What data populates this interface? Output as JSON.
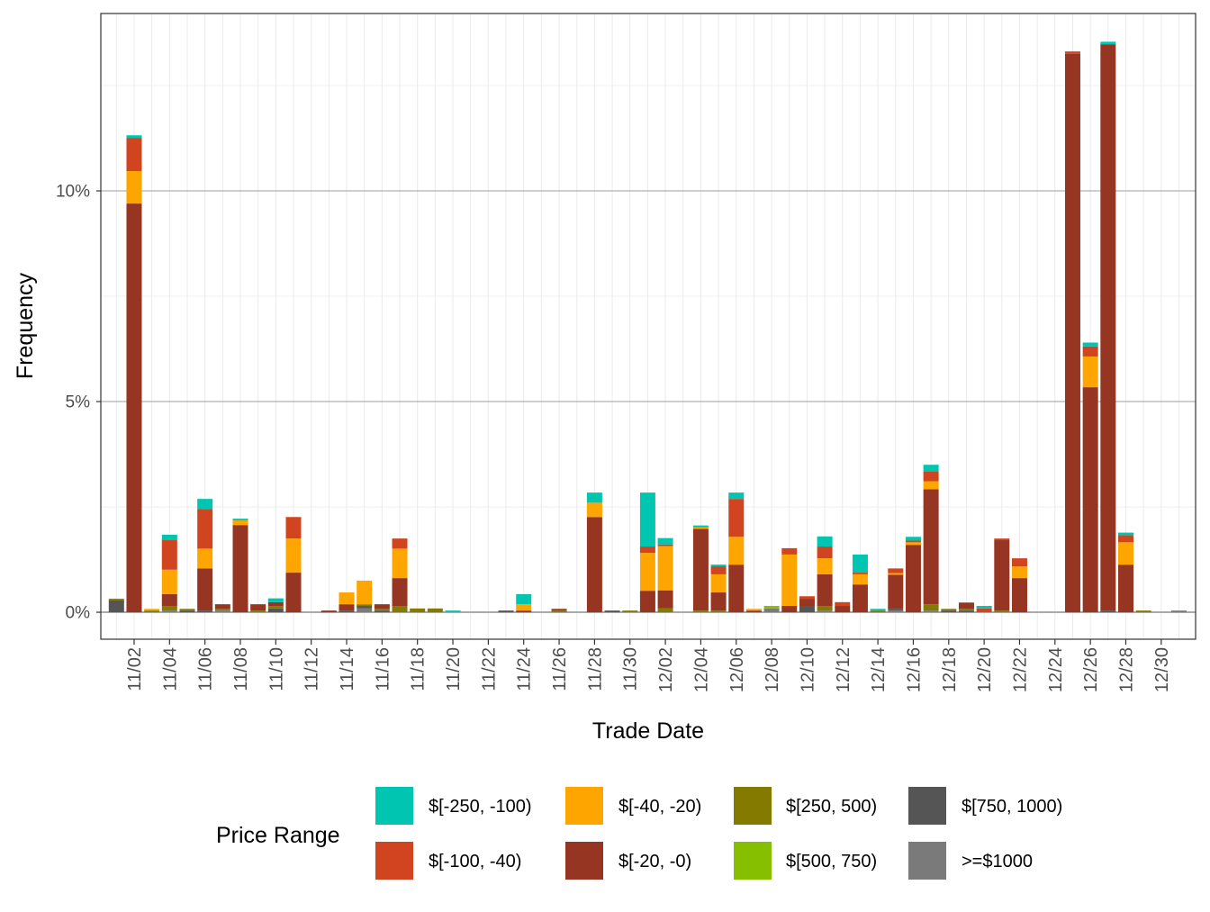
{
  "chart_data": {
    "type": "bar",
    "stacked": true,
    "xlabel": "Trade Date",
    "ylabel": "Frequency",
    "ylim": [
      -0.64,
      14.21
    ],
    "y_ticks": [
      {
        "value": 0,
        "label": "0%"
      },
      {
        "value": 5,
        "label": "5%"
      },
      {
        "value": 10,
        "label": "10%"
      }
    ],
    "grid": true,
    "legend": {
      "title": "Price Range",
      "placement": "bottom"
    },
    "categories": [
      "11/01",
      "11/02",
      "11/03",
      "11/04",
      "11/05",
      "11/06",
      "11/07",
      "11/08",
      "11/09",
      "11/10",
      "11/11",
      "11/12",
      "11/13",
      "11/14",
      "11/15",
      "11/16",
      "11/17",
      "11/18",
      "11/19",
      "11/20",
      "11/21",
      "11/22",
      "11/23",
      "11/24",
      "11/25",
      "11/26",
      "11/27",
      "11/28",
      "11/29",
      "11/30",
      "12/01",
      "12/02",
      "12/03",
      "12/04",
      "12/05",
      "12/06",
      "12/07",
      "12/08",
      "12/09",
      "12/10",
      "12/11",
      "12/12",
      "12/13",
      "12/14",
      "12/15",
      "12/16",
      "12/17",
      "12/18",
      "12/19",
      "12/20",
      "12/21",
      "12/22",
      "12/23",
      "12/24",
      "12/25",
      "12/26",
      "12/27",
      "12/28",
      "12/29",
      "12/30",
      "12/31"
    ],
    "x_tick_labels": [
      "11/02",
      "11/04",
      "11/06",
      "11/08",
      "11/10",
      "11/12",
      "11/14",
      "11/16",
      "11/18",
      "11/20",
      "11/22",
      "11/24",
      "11/26",
      "11/28",
      "11/30",
      "12/02",
      "12/04",
      "12/06",
      "12/08",
      "12/10",
      "12/12",
      "12/14",
      "12/16",
      "12/18",
      "12/20",
      "12/22",
      "12/24",
      "12/26",
      "12/28",
      "12/30"
    ],
    "series": [
      {
        "name": ">=$1000",
        "color": "#7a7a7a",
        "values": [
          0,
          0,
          0,
          0.04,
          0,
          0,
          0.04,
          0,
          0,
          0,
          0,
          0,
          0,
          0,
          0.09,
          0,
          0,
          0,
          0,
          0,
          0,
          0,
          0,
          0,
          0,
          0,
          0,
          0,
          0,
          0,
          0,
          0,
          0,
          0,
          0,
          0,
          0,
          0.09,
          0,
          0,
          0.04,
          0,
          0,
          0,
          0.04,
          0,
          0.04,
          0,
          0,
          0,
          0,
          0,
          0,
          0,
          0,
          0,
          0,
          0,
          0,
          0,
          0.04
        ]
      },
      {
        "name": "$[750, 1000)",
        "color": "#555555",
        "values": [
          0.28,
          0,
          0,
          0,
          0.04,
          0.04,
          0,
          0,
          0,
          0.09,
          0,
          0,
          0,
          0.04,
          0.06,
          0.04,
          0,
          0,
          0,
          0,
          0,
          0,
          0.04,
          0,
          0,
          0,
          0,
          0,
          0.04,
          0,
          0,
          0,
          0,
          0,
          0,
          0,
          0,
          0,
          0,
          0.15,
          0,
          0,
          0,
          0,
          0.04,
          0,
          0,
          0.04,
          0.04,
          0,
          0,
          0,
          0,
          0,
          0,
          0,
          0.04,
          0,
          0,
          0,
          0
        ]
      },
      {
        "name": "$[500, 750)",
        "color": "#86be00",
        "values": [
          0,
          0,
          0,
          0,
          0,
          0,
          0,
          0,
          0,
          0,
          0,
          0,
          0,
          0,
          0,
          0,
          0,
          0,
          0,
          0,
          0,
          0,
          0,
          0,
          0,
          0,
          0,
          0,
          0,
          0,
          0,
          0,
          0,
          0,
          0,
          0,
          0,
          0.06,
          0,
          0,
          0,
          0,
          0,
          0,
          0,
          0,
          0,
          0,
          0,
          0,
          0,
          0,
          0,
          0,
          0,
          0,
          0,
          0,
          0,
          0,
          0
        ]
      },
      {
        "name": "$[250, 500)",
        "color": "#857a00",
        "values": [
          0.04,
          0,
          0.04,
          0.11,
          0.04,
          0,
          0.04,
          0,
          0.04,
          0.06,
          0,
          0,
          0,
          0,
          0.04,
          0.04,
          0.15,
          0.09,
          0.09,
          0,
          0,
          0,
          0,
          0,
          0,
          0.04,
          0,
          0,
          0,
          0.04,
          0,
          0.09,
          0,
          0.04,
          0.04,
          0,
          0,
          0,
          0,
          0,
          0.11,
          0,
          0,
          0.04,
          0,
          0,
          0.15,
          0.04,
          0.04,
          0,
          0.04,
          0,
          0,
          0,
          0,
          0,
          0,
          0,
          0.04,
          0,
          0
        ]
      },
      {
        "name": "$[-20, -0)",
        "color": "#963522",
        "values": [
          0,
          9.7,
          0,
          0.28,
          0,
          1.0,
          0.11,
          2.07,
          0.15,
          0.09,
          0.94,
          0,
          0.04,
          0.15,
          0,
          0.11,
          0.66,
          0,
          0,
          0,
          0,
          0,
          0,
          0.04,
          0,
          0.04,
          0,
          2.26,
          0,
          0,
          0.51,
          0.43,
          0,
          1.94,
          0.43,
          1.13,
          0.04,
          0,
          0.15,
          0.17,
          0.75,
          0.15,
          0.66,
          0,
          0.81,
          1.6,
          2.73,
          0,
          0.15,
          0,
          1.67,
          0.81,
          0,
          0,
          13.25,
          5.34,
          13.44,
          1.13,
          0,
          0,
          0
        ]
      },
      {
        "name": "$[-40, -20)",
        "color": "#ffa500",
        "values": [
          0,
          0.77,
          0.04,
          0.58,
          0,
          0.47,
          0,
          0.11,
          0,
          0,
          0.81,
          0,
          0,
          0.28,
          0.56,
          0,
          0.7,
          0,
          0,
          0,
          0,
          0,
          0,
          0.15,
          0,
          0,
          0,
          0.34,
          0,
          0,
          0.9,
          1.05,
          0,
          0.04,
          0.43,
          0.66,
          0.04,
          0,
          1.22,
          0,
          0.38,
          0,
          0.24,
          0,
          0.04,
          0.06,
          0.19,
          0,
          0,
          0,
          0,
          0.28,
          0,
          0,
          0,
          0.73,
          0,
          0.53,
          0,
          0,
          0
        ]
      },
      {
        "name": "$[-100, -40)",
        "color": "#d04520",
        "values": [
          0,
          0.79,
          0,
          0.7,
          0,
          0.94,
          0,
          0,
          0,
          0,
          0.51,
          0,
          0,
          0,
          0,
          0,
          0.24,
          0,
          0,
          0,
          0,
          0,
          0,
          0,
          0,
          0,
          0,
          0,
          0,
          0,
          0.15,
          0.04,
          0,
          0,
          0.19,
          0.9,
          0,
          0,
          0.15,
          0.06,
          0.28,
          0.09,
          0.04,
          0,
          0.11,
          0.04,
          0.24,
          0,
          0,
          0.09,
          0.04,
          0.19,
          0,
          0,
          0.06,
          0.24,
          0,
          0.17,
          0,
          0,
          0
        ]
      },
      {
        "name": "$[-250, -100)",
        "color": "#00c5b0",
        "values": [
          0,
          0.06,
          0,
          0.13,
          0,
          0.24,
          0,
          0.04,
          0,
          0.09,
          0,
          0,
          0,
          0,
          0,
          0,
          0,
          0,
          0,
          0.04,
          0,
          0,
          0,
          0.24,
          0,
          0,
          0,
          0.24,
          0,
          0,
          1.28,
          0.15,
          0,
          0.04,
          0.04,
          0.15,
          0,
          0,
          0,
          0,
          0.24,
          0,
          0.43,
          0.04,
          0,
          0.09,
          0.15,
          0,
          0,
          0.06,
          0,
          0,
          0,
          0,
          0,
          0.09,
          0.06,
          0.06,
          0,
          0,
          0
        ]
      }
    ],
    "legend_order": [
      "$[-250, -100)",
      "$[-100, -40)",
      "$[-40, -20)",
      "$[-20, -0)",
      "$[250, 500)",
      "$[500, 750)",
      "$[750, 1000)",
      ">=$1000"
    ]
  }
}
